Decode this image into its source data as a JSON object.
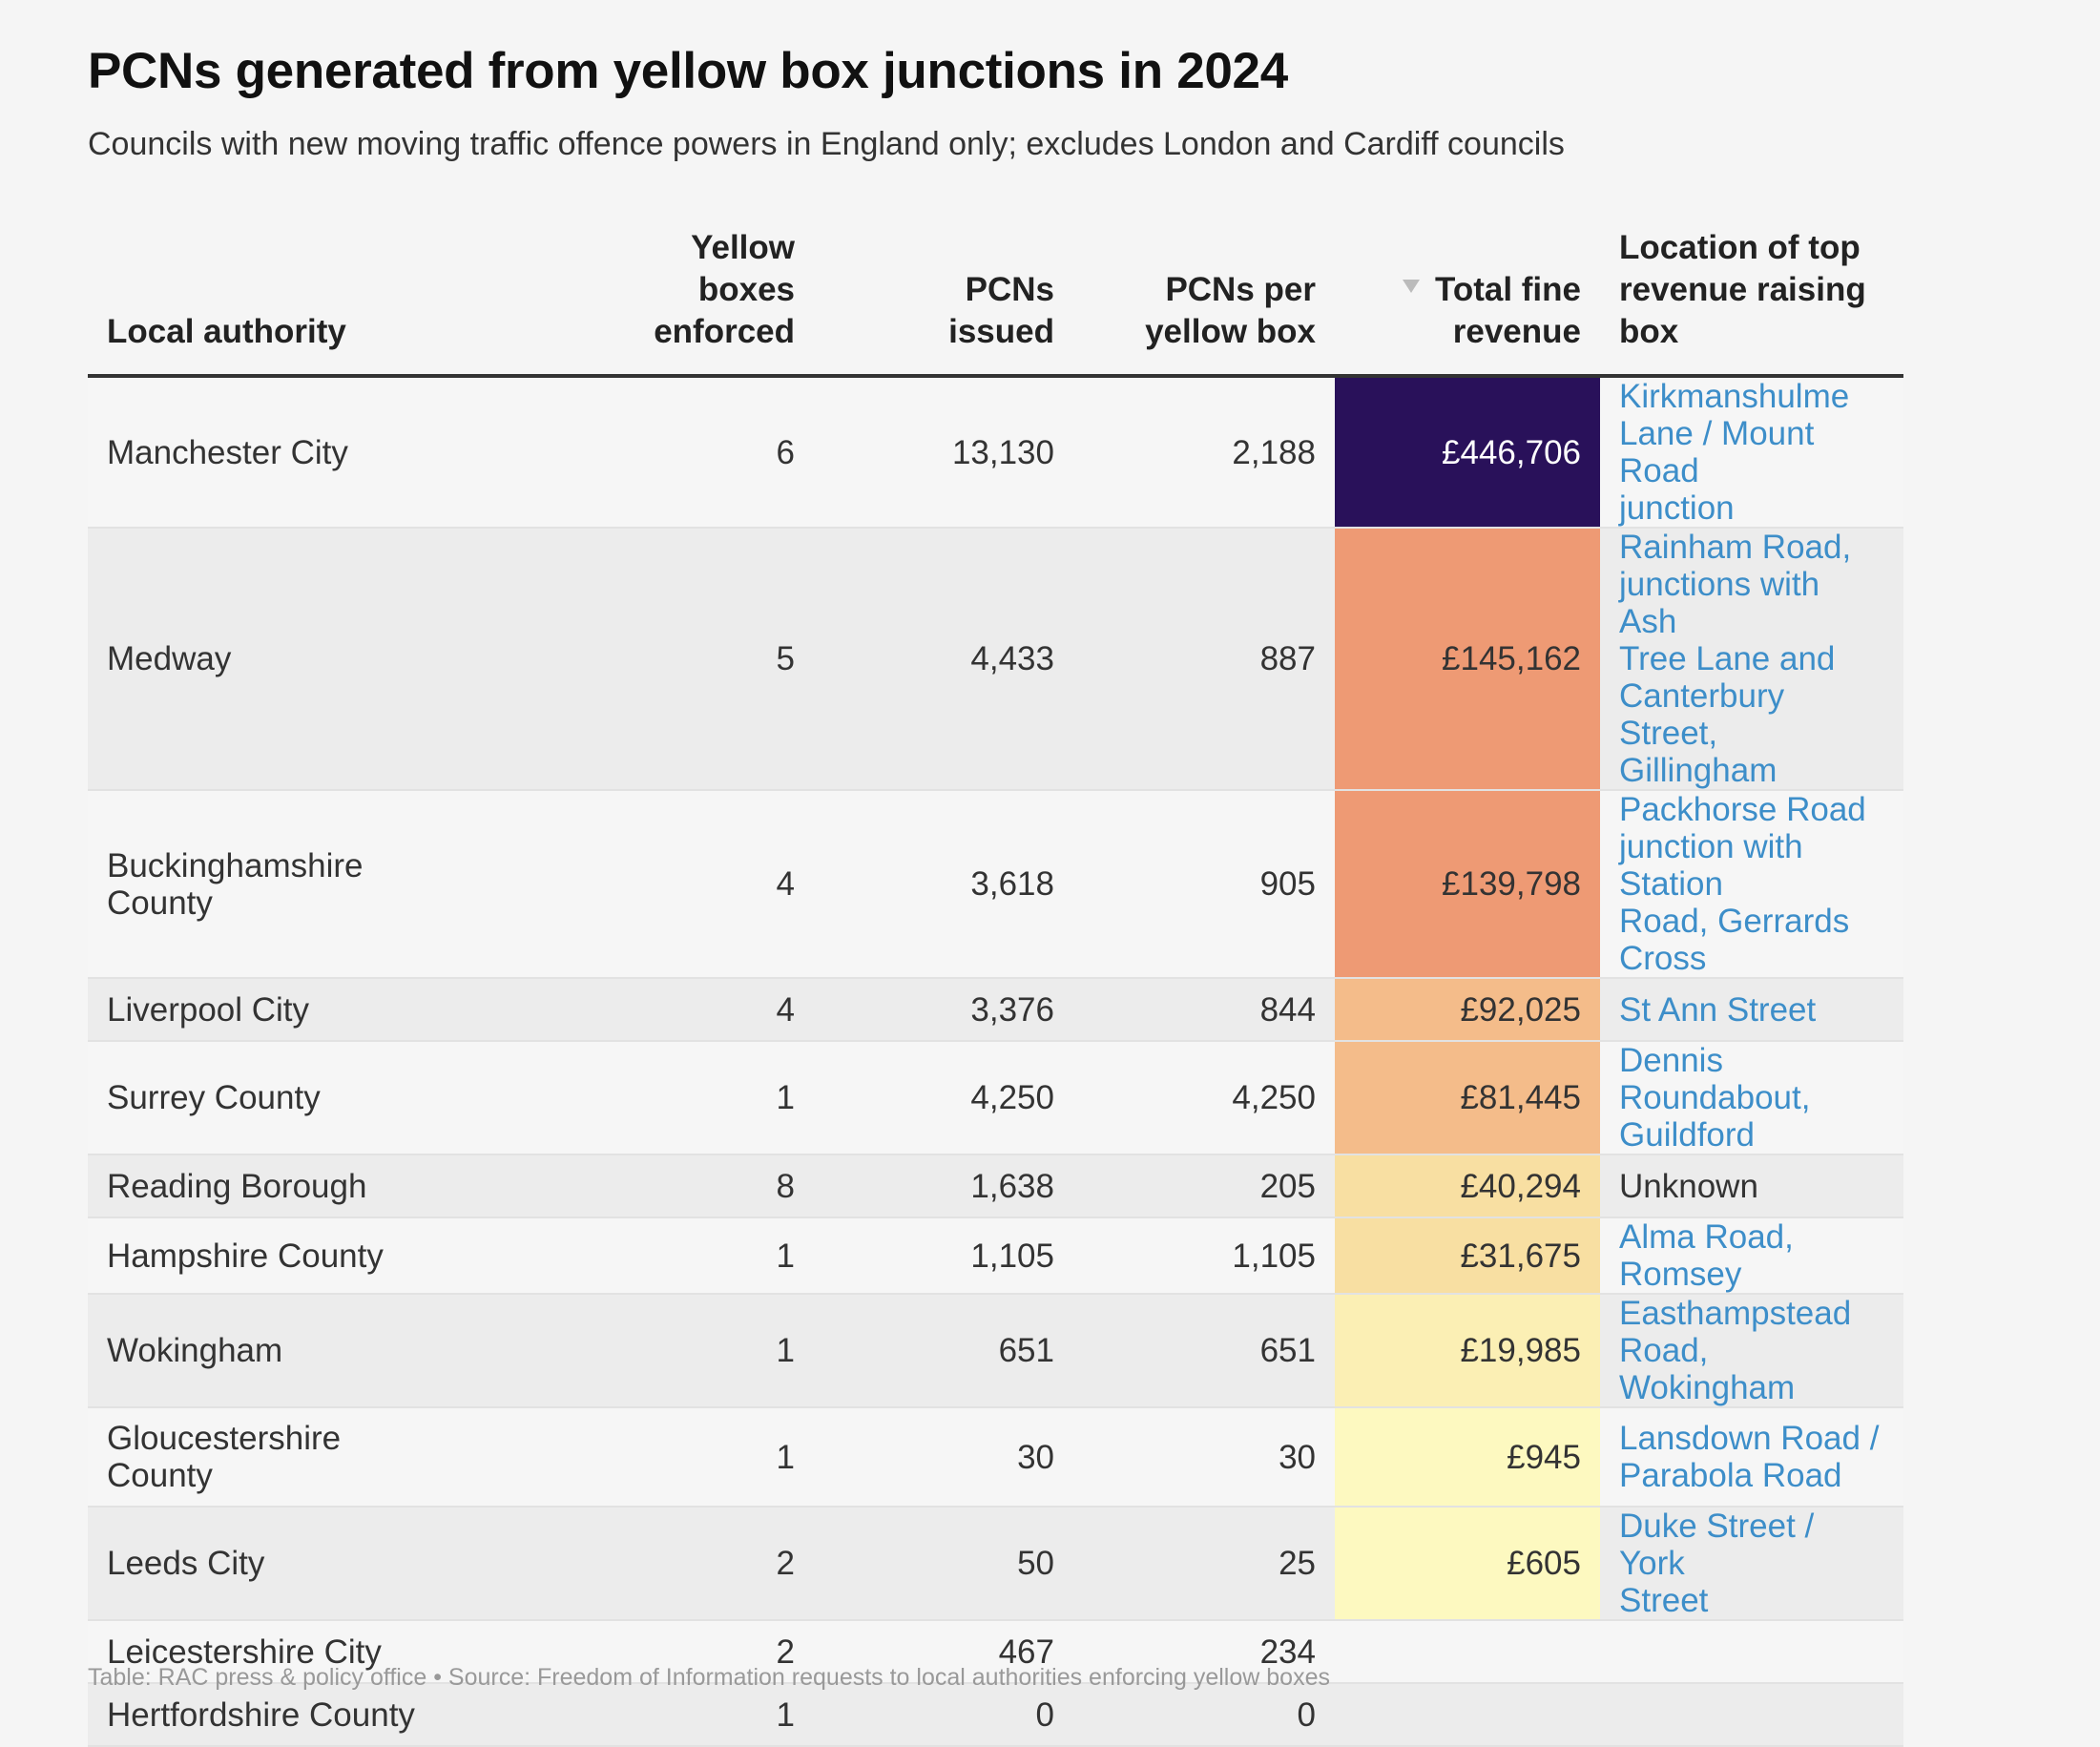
{
  "title": "PCNs generated from yellow box junctions in 2024",
  "subtitle": "Councils with new moving traffic offence powers in England only; excludes London and Cardiff councils",
  "footer": "Table: RAC press & policy office • Source: Freedom of Information requests to local authorities enforcing yellow boxes",
  "colors": {
    "revenue_446706": "#29115a",
    "revenue_145162": "#ee9a74",
    "revenue_139798": "#ee9a74",
    "revenue_92025": "#f4bc8a",
    "revenue_81445": "#f4bc8a",
    "revenue_40294": "#f8dfa2",
    "revenue_31675": "#f8dfa2",
    "revenue_19985": "#fbefb4",
    "revenue_945": "#fdf9c0",
    "revenue_605": "#fdf9c0",
    "link": "#3d8ec9"
  },
  "chart_data": {
    "type": "table",
    "sorted_by": "Total fine revenue",
    "sort_direction": "descending",
    "columns": [
      [
        "Yellow",
        "boxes",
        "enforced"
      ],
      [
        "PCNs",
        "issued"
      ],
      [
        "PCNs per",
        "yellow box"
      ],
      [
        "Total fine",
        "revenue"
      ],
      [
        "Location of top",
        "revenue raising",
        "box"
      ]
    ],
    "first_column": "Local authority",
    "rows": [
      {
        "authority": [
          "Manchester City"
        ],
        "boxes": "6",
        "pcns": "13,130",
        "per_box": "2,188",
        "revenue": "£446,706",
        "location": [
          "Kirkmanshulme",
          "Lane / Mount Road",
          "junction"
        ],
        "location_is_link": true
      },
      {
        "authority": [
          "Medway"
        ],
        "boxes": "5",
        "pcns": "4,433",
        "per_box": "887",
        "revenue": "£145,162",
        "location": [
          "Rainham Road,",
          "junctions with Ash",
          "Tree Lane and",
          "Canterbury Street,",
          "Gillingham"
        ],
        "location_is_link": true
      },
      {
        "authority": [
          "Buckinghamshire",
          "County"
        ],
        "boxes": "4",
        "pcns": "3,618",
        "per_box": "905",
        "revenue": "£139,798",
        "location": [
          "Packhorse Road",
          "junction with Station",
          "Road, Gerrards",
          "Cross"
        ],
        "location_is_link": true
      },
      {
        "authority": [
          "Liverpool City"
        ],
        "boxes": "4",
        "pcns": "3,376",
        "per_box": "844",
        "revenue": "£92,025",
        "location": [
          "St Ann Street"
        ],
        "location_is_link": true
      },
      {
        "authority": [
          "Surrey County"
        ],
        "boxes": "1",
        "pcns": "4,250",
        "per_box": "4,250",
        "revenue": "£81,445",
        "location": [
          "Dennis Roundabout,",
          "Guildford"
        ],
        "location_is_link": true
      },
      {
        "authority": [
          "Reading Borough"
        ],
        "boxes": "8",
        "pcns": "1,638",
        "per_box": "205",
        "revenue": "£40,294",
        "location": [
          "Unknown"
        ],
        "location_is_link": false
      },
      {
        "authority": [
          "Hampshire County"
        ],
        "boxes": "1",
        "pcns": "1,105",
        "per_box": "1,105",
        "revenue": "£31,675",
        "location": [
          "Alma Road, Romsey"
        ],
        "location_is_link": true
      },
      {
        "authority": [
          "Wokingham"
        ],
        "boxes": "1",
        "pcns": "651",
        "per_box": "651",
        "revenue": "£19,985",
        "location": [
          "Easthampstead",
          "Road, Wokingham"
        ],
        "location_is_link": true
      },
      {
        "authority": [
          "Gloucestershire",
          "County"
        ],
        "boxes": "1",
        "pcns": "30",
        "per_box": "30",
        "revenue": "£945",
        "location": [
          "Lansdown Road /",
          "Parabola Road"
        ],
        "location_is_link": true
      },
      {
        "authority": [
          "Leeds City"
        ],
        "boxes": "2",
        "pcns": "50",
        "per_box": "25",
        "revenue": "£605",
        "location": [
          "Duke Street / York",
          "Street"
        ],
        "location_is_link": true
      },
      {
        "authority": [
          "Leicestershire City"
        ],
        "boxes": "2",
        "pcns": "467",
        "per_box": "234",
        "revenue": "",
        "location": [],
        "location_is_link": false
      },
      {
        "authority": [
          "Hertfordshire County"
        ],
        "boxes": "1",
        "pcns": "0",
        "per_box": "0",
        "revenue": "",
        "location": [],
        "location_is_link": false
      }
    ]
  }
}
